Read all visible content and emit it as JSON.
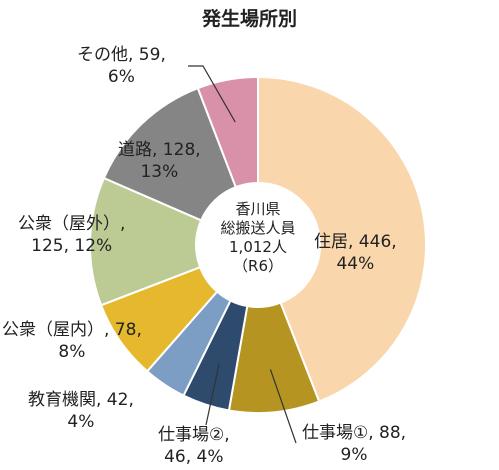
{
  "chart_data": {
    "type": "pie",
    "title": "発生場所別",
    "center_label": [
      "香川県",
      "総搬送人員",
      "1,012人",
      "（R6）"
    ],
    "slices": [
      {
        "name": "住居",
        "value": 446,
        "percent": 44,
        "color": "#F9D6AC",
        "label": [
          "住居, 446,",
          "44%"
        ]
      },
      {
        "name": "仕事場①",
        "value": 88,
        "percent": 9,
        "color": "#B59422",
        "label": [
          "仕事場①, 88,",
          "9%"
        ]
      },
      {
        "name": "仕事場②",
        "value": 46,
        "percent": 4,
        "color": "#2E4B6E",
        "label": [
          "仕事場②,",
          "46, 4%"
        ]
      },
      {
        "name": "教育機関",
        "value": 42,
        "percent": 4,
        "color": "#7C9DC4",
        "label": [
          "教育機関, 42,",
          "4%"
        ]
      },
      {
        "name": "公衆（屋内）",
        "value": 78,
        "percent": 8,
        "color": "#E6B82E",
        "label": [
          "公衆（屋内）, 78,",
          "8%"
        ]
      },
      {
        "name": "公衆（屋外）",
        "value": 125,
        "percent": 12,
        "color": "#BCCB94",
        "label": [
          "公衆（屋外）,",
          "125, 12%"
        ]
      },
      {
        "name": "道路",
        "value": 128,
        "percent": 13,
        "color": "#858585",
        "label": [
          "道路, 128,",
          "13%"
        ]
      },
      {
        "name": "その他",
        "value": 59,
        "percent": 6,
        "color": "#D891A8",
        "label": [
          "その他, 59,",
          "6%"
        ]
      }
    ]
  }
}
